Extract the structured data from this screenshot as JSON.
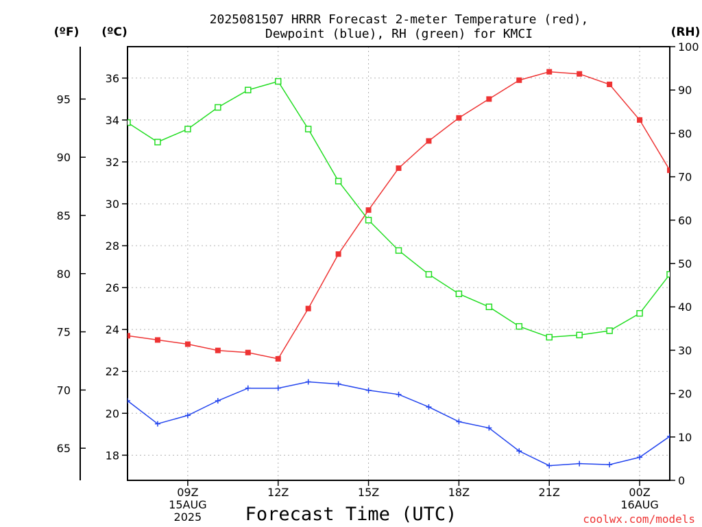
{
  "chart_data": {
    "type": "line",
    "title_line1": "2025081507 HRRR Forecast 2-meter Temperature (red),",
    "title_line2": "Dewpoint (blue), RH (green) for KMCI",
    "xlabel": "Forecast Time (UTC)",
    "credit": "coolwx.com/models",
    "left_f_unit": "(ºF)",
    "left_c_unit": "(ºC)",
    "right_unit": "(RH)",
    "x_hours": [
      7,
      8,
      9,
      10,
      11,
      12,
      13,
      14,
      15,
      16,
      17,
      18,
      19,
      20,
      21,
      22,
      23,
      24,
      25
    ],
    "xlim": [
      7,
      25
    ],
    "x_ticks": [
      {
        "hour": 9,
        "lines": [
          "09Z",
          "15AUG",
          "2025"
        ]
      },
      {
        "hour": 12,
        "lines": [
          "12Z"
        ]
      },
      {
        "hour": 15,
        "lines": [
          "15Z"
        ]
      },
      {
        "hour": 18,
        "lines": [
          "18Z"
        ]
      },
      {
        "hour": 21,
        "lines": [
          "21Z"
        ]
      },
      {
        "hour": 24,
        "lines": [
          "00Z",
          "16AUG"
        ]
      }
    ],
    "celsius_axis": {
      "lim": [
        16.8,
        37.5
      ],
      "ticks": [
        18,
        20,
        22,
        24,
        26,
        28,
        30,
        32,
        34,
        36
      ]
    },
    "fahrenheit_axis": {
      "ticks": [
        65,
        70,
        75,
        80,
        85,
        90,
        95
      ]
    },
    "rh_axis": {
      "lim": [
        0,
        100
      ],
      "ticks": [
        0,
        10,
        20,
        30,
        40,
        50,
        60,
        70,
        80,
        90,
        100
      ]
    },
    "series": [
      {
        "key": "temperature",
        "color": "#ee3333",
        "marker": "filled-square",
        "axis": "celsius",
        "values": [
          23.7,
          23.5,
          23.3,
          23.0,
          22.9,
          22.6,
          25.0,
          27.6,
          29.7,
          31.7,
          33.0,
          34.1,
          35.0,
          35.9,
          36.3,
          36.2,
          35.7,
          34.0,
          31.6
        ]
      },
      {
        "key": "dewpoint",
        "color": "#2244ee",
        "marker": "plus",
        "axis": "celsius",
        "values": [
          20.6,
          19.5,
          19.9,
          20.6,
          21.2,
          21.2,
          21.5,
          21.4,
          21.1,
          20.9,
          20.3,
          19.6,
          19.3,
          18.2,
          17.5,
          17.6,
          17.55,
          17.9,
          18.9
        ]
      },
      {
        "key": "rh",
        "color": "#22dd22",
        "marker": "open-square",
        "axis": "rh",
        "values": [
          82.5,
          78,
          81,
          86,
          90,
          92,
          81,
          69,
          60,
          53,
          47.5,
          43,
          40,
          35.5,
          33,
          33.5,
          34.5,
          38.5,
          47.5
        ]
      }
    ]
  }
}
